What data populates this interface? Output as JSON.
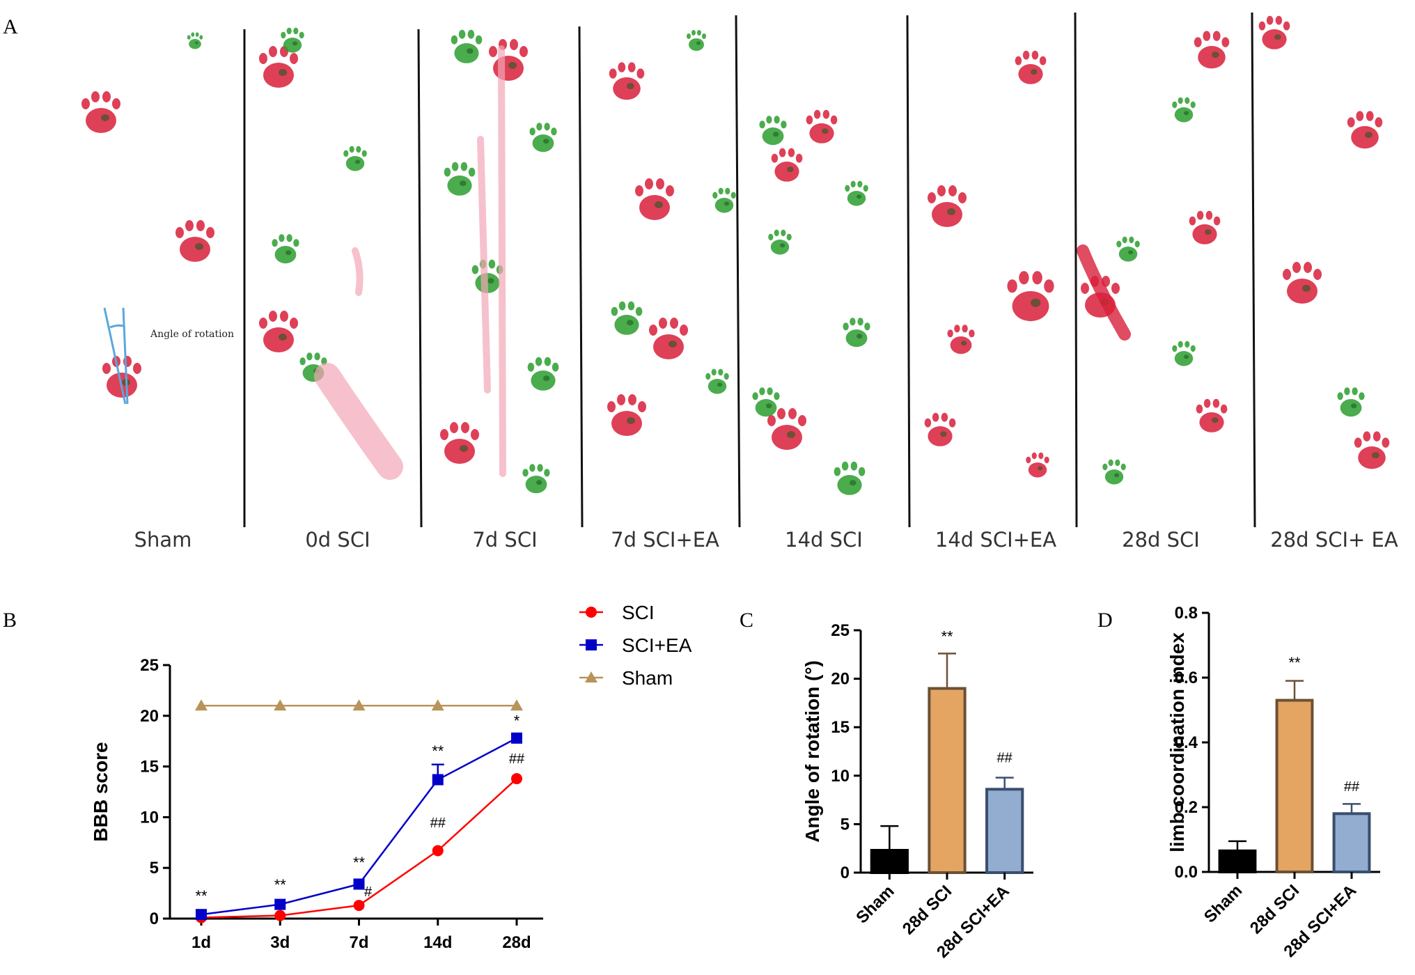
{
  "panel_labels": {
    "a": "A",
    "b": "B",
    "c": "C",
    "d": "D"
  },
  "footprint_panel": {
    "annotation": "Angle of rotation",
    "groups": [
      "Sham",
      "0d SCI",
      "7d SCI",
      "7d SCI+EA",
      "14d SCI",
      "14d SCI+EA",
      "28d SCI",
      "28d SCI+ EA"
    ],
    "colors": {
      "forelimb": "#d81f3a",
      "hindlimb": "#2a9d2e",
      "light": "#f2a6b6"
    }
  },
  "chart_data": [
    {
      "id": "B",
      "type": "line",
      "title": "",
      "xlabel": "",
      "ylabel": "BBB score",
      "categories": [
        "1d",
        "3d",
        "7d",
        "14d",
        "28d"
      ],
      "ylim": [
        0,
        25
      ],
      "yticks": [
        0,
        5,
        10,
        15,
        20,
        25
      ],
      "series": [
        {
          "name": "SCI",
          "marker": "circle",
          "color": "#ff0000",
          "values": [
            0.1,
            0.3,
            1.3,
            6.7,
            13.8
          ],
          "errors": [
            0,
            0,
            0,
            0,
            0
          ]
        },
        {
          "name": "SCI+EA",
          "marker": "square",
          "color": "#0000c8",
          "values": [
            0.4,
            1.4,
            3.4,
            13.7,
            17.8
          ],
          "errors": [
            0,
            0,
            0,
            1.5,
            0
          ]
        },
        {
          "name": "Sham",
          "marker": "triangle",
          "color": "#b8935a",
          "values": [
            21,
            21,
            21,
            21,
            21
          ],
          "errors": [
            0,
            0,
            0,
            0,
            0
          ]
        }
      ],
      "annotations": [
        {
          "text": "**",
          "category": "1d",
          "y": 1.7
        },
        {
          "text": "**",
          "category": "3d",
          "y": 2.8
        },
        {
          "text": "**",
          "category": "7d",
          "y": 5.0
        },
        {
          "text": "#",
          "category": "7d",
          "y": 2.2
        },
        {
          "text": "**",
          "category": "14d",
          "y": 16.0
        },
        {
          "text": "##",
          "category": "14d",
          "y": 9.0
        },
        {
          "text": "*",
          "category": "28d",
          "y": 19.0
        },
        {
          "text": "##",
          "category": "28d",
          "y": 15.3
        }
      ],
      "legend_position": "top-right"
    },
    {
      "id": "C",
      "type": "bar",
      "title": "",
      "xlabel": "",
      "ylabel": "Angle of rotation (°)",
      "categories": [
        "Sham",
        "28d SCI",
        "28d SCI+EA"
      ],
      "values": [
        2.3,
        19.0,
        8.6
      ],
      "errors": [
        2.5,
        3.6,
        1.2
      ],
      "fill_colors": [
        "#000000",
        "#e4a563",
        "#92add0"
      ],
      "edge_colors": [
        "#000000",
        "#6b5134",
        "#3a4e6f"
      ],
      "ylim": [
        0,
        25
      ],
      "yticks": [
        0,
        5,
        10,
        15,
        20,
        25
      ],
      "annotations": [
        {
          "text": "**",
          "category": "28d SCI",
          "y": 23.8
        },
        {
          "text": "##",
          "category": "28d SCI+EA",
          "y": 11.4
        }
      ]
    },
    {
      "id": "D",
      "type": "bar",
      "title": "",
      "xlabel": "",
      "ylabel": "limb coordination index",
      "categories": [
        "Sham",
        "28d SCI",
        "28d SCI+EA"
      ],
      "values": [
        0.065,
        0.53,
        0.18
      ],
      "errors": [
        0.03,
        0.06,
        0.03
      ],
      "fill_colors": [
        "#000000",
        "#e4a563",
        "#92add0"
      ],
      "edge_colors": [
        "#000000",
        "#6b5134",
        "#3a4e6f"
      ],
      "ylim": [
        0,
        0.8
      ],
      "yticks": [
        "0.0",
        "0.2",
        "0.4",
        "0.6",
        "0.8"
      ],
      "annotations": [
        {
          "text": "**",
          "category": "28d SCI",
          "y": 0.63
        },
        {
          "text": "##",
          "category": "28d SCI+EA",
          "y": 0.25
        }
      ]
    }
  ]
}
